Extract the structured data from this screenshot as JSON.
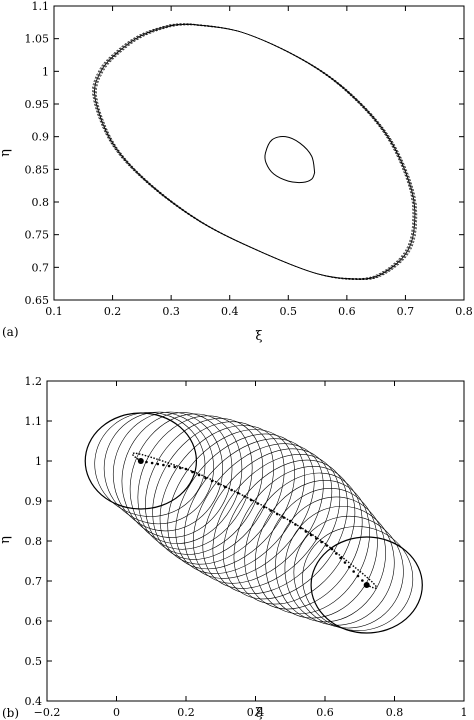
{
  "chart_data": [
    {
      "type": "line",
      "panel_label": "(a)",
      "xlabel": "ξ",
      "ylabel": "η",
      "xlim": [
        0.1,
        0.8
      ],
      "ylim": [
        0.65,
        1.1
      ],
      "xticks": [
        "0.1",
        "0.2",
        "0.3",
        "0.4",
        "0.5",
        "0.6",
        "0.7",
        "0.8"
      ],
      "yticks": [
        "0.65",
        "0.7",
        "0.75",
        "0.8",
        "0.85",
        "0.9",
        "0.95",
        "1",
        "1.05",
        "1.1"
      ],
      "grid": false,
      "series": [
        {
          "curve": "outer-orbit",
          "style": "solid + dashed bundle",
          "x": [
            0.335,
            0.42,
            0.52,
            0.6,
            0.67,
            0.71,
            0.715,
            0.7,
            0.66,
            0.62,
            0.55,
            0.45,
            0.35,
            0.26,
            0.2,
            0.17,
            0.18,
            0.21,
            0.25,
            0.3,
            0.335
          ],
          "y": [
            1.072,
            1.06,
            1.02,
            0.97,
            0.9,
            0.82,
            0.76,
            0.72,
            0.69,
            0.682,
            0.69,
            0.725,
            0.77,
            0.83,
            0.89,
            0.96,
            1.0,
            1.03,
            1.055,
            1.07,
            1.072
          ]
        },
        {
          "curve": "inner-orbit",
          "style": "solid",
          "x": [
            0.545,
            0.54,
            0.52,
            0.495,
            0.472,
            0.461,
            0.462,
            0.475,
            0.5,
            0.525,
            0.54,
            0.545
          ],
          "y": [
            0.845,
            0.87,
            0.89,
            0.9,
            0.895,
            0.875,
            0.86,
            0.843,
            0.832,
            0.83,
            0.835,
            0.845
          ]
        }
      ]
    },
    {
      "type": "line",
      "panel_label": "(b)",
      "xlabel": "ξ",
      "ylabel": "η",
      "xlim": [
        -0.2,
        1.0
      ],
      "ylim": [
        0.4,
        1.2
      ],
      "xticks": [
        "−0.2",
        "0",
        "0.2",
        "0.4",
        "0.6",
        "0.8",
        "1"
      ],
      "yticks": [
        "0.4",
        "0.5",
        "0.6",
        "0.7",
        "0.8",
        "0.9",
        "1",
        "1.1",
        "1.2"
      ],
      "grid": false,
      "loops": {
        "count": 26,
        "center_start": [
          0.07,
          1.0
        ],
        "center_end": [
          0.72,
          0.69
        ],
        "rx_range": [
          0.15,
          0.16
        ],
        "ry_range": [
          0.12,
          0.2
        ],
        "tilt_deg_range": [
          0,
          40
        ]
      },
      "center_track": {
        "x": [
          0.07,
          0.2,
          0.35,
          0.5,
          0.62,
          0.72
        ],
        "y": [
          1.0,
          0.98,
          0.92,
          0.85,
          0.78,
          0.69
        ]
      }
    }
  ]
}
